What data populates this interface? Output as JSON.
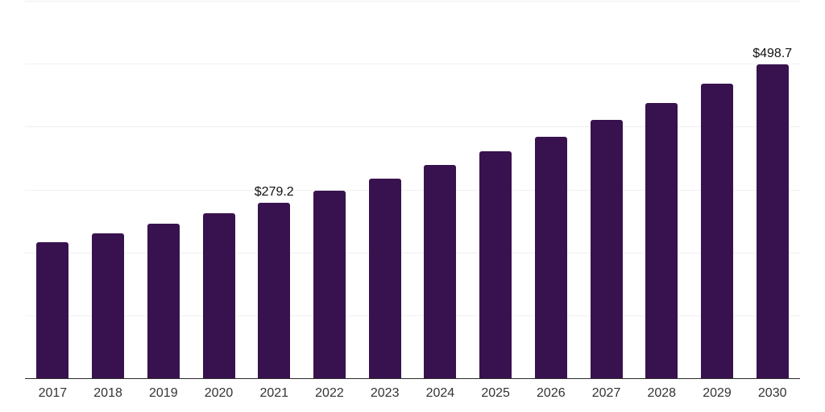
{
  "chart_data": {
    "type": "bar",
    "title": "",
    "xlabel": "",
    "ylabel": "",
    "categories": [
      "2017",
      "2018",
      "2019",
      "2020",
      "2021",
      "2022",
      "2023",
      "2024",
      "2025",
      "2026",
      "2027",
      "2028",
      "2029",
      "2030"
    ],
    "values": [
      216.5,
      230.5,
      245.6,
      262.3,
      279.2,
      297.8,
      317.4,
      338.6,
      360.5,
      384.2,
      410.1,
      437.5,
      467.7,
      498.7
    ],
    "point_labels": [
      "",
      "",
      "",
      "",
      "$279.2",
      "",
      "",
      "",
      "",
      "",
      "",
      "",
      "",
      "$498.7"
    ],
    "ylim": [
      0,
      600
    ],
    "gridline_values": [
      100,
      200,
      300,
      400,
      500,
      600
    ],
    "grid": "horizontal-only",
    "legend": "none",
    "y_axis_tick_labels_visible": false,
    "colors": {
      "bar": "#38124E",
      "gridline": "#F0F0F0",
      "axis_line": "#2B2B2B",
      "tick_label": "#333333",
      "value_label": "#111111",
      "background": "#FFFFFF"
    }
  }
}
